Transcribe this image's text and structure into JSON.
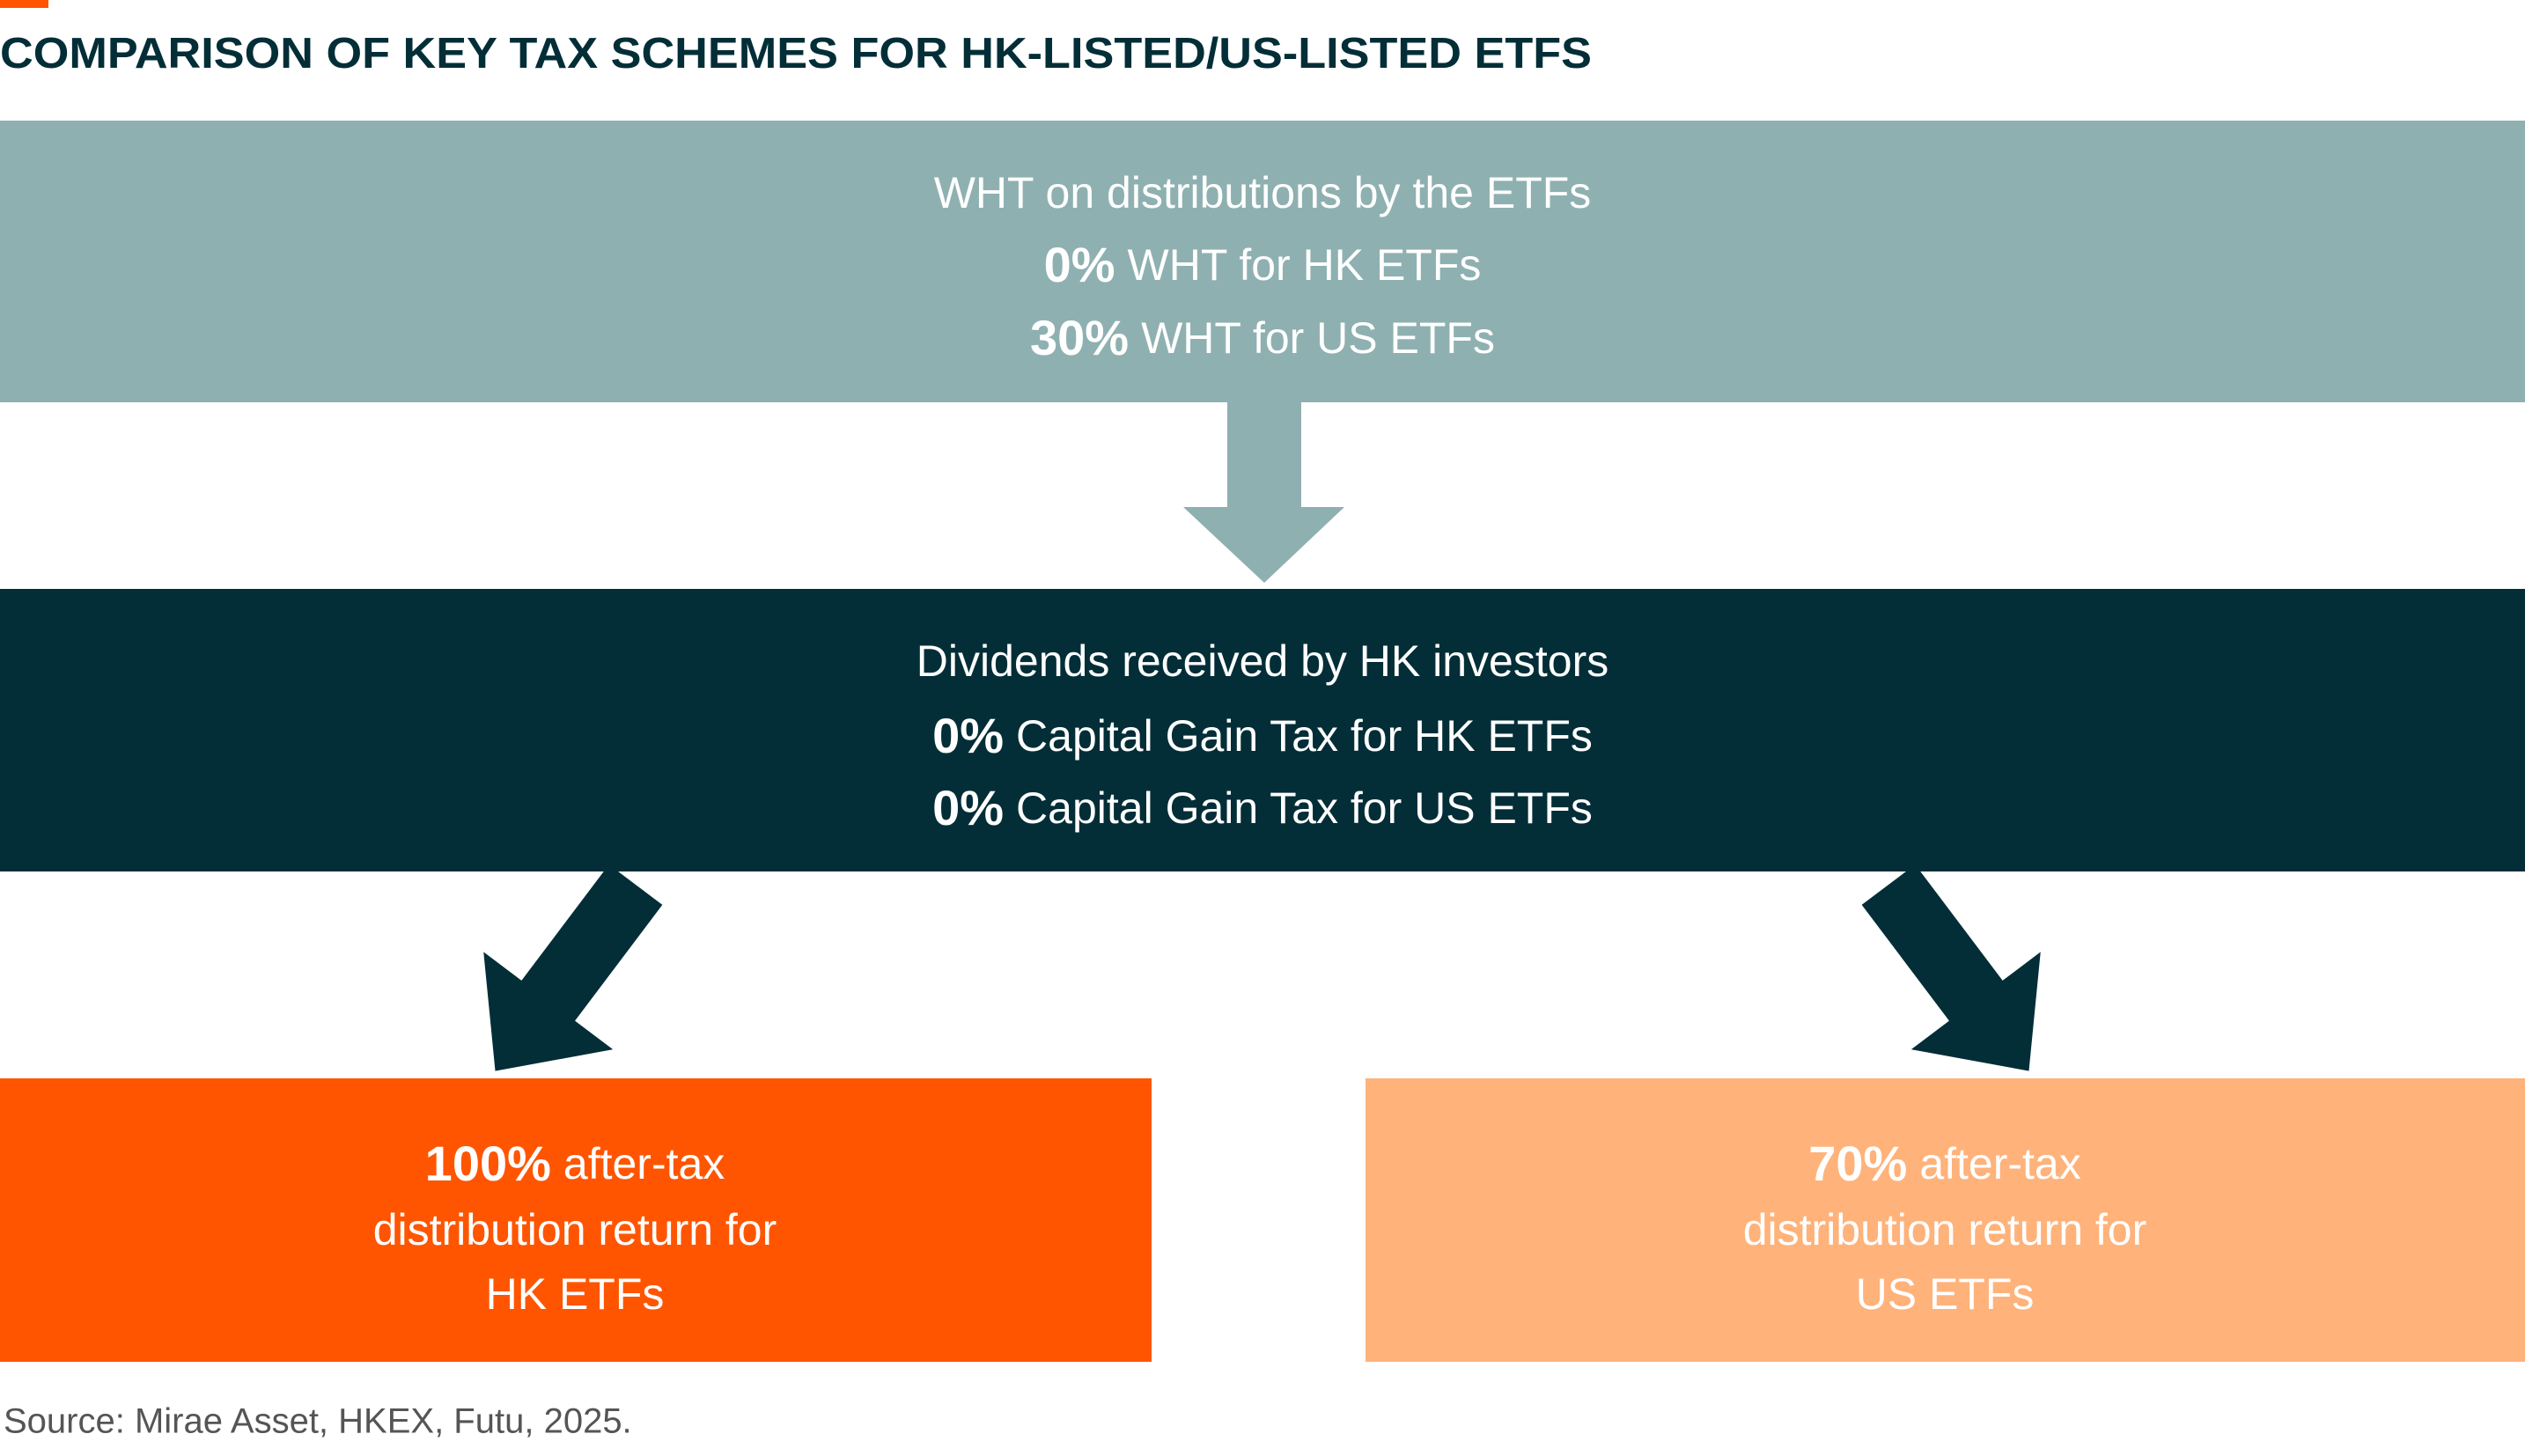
{
  "title": "COMPARISON OF KEY TAX SCHEMES FOR HK-LISTED/US-LISTED ETFS",
  "top_box": {
    "lines": [
      {
        "text": "WHT on distributions by the ETFs"
      },
      {
        "bold": "0%",
        "text": "WHT for HK ETFs"
      },
      {
        "bold": "30%",
        "text": "WHT for US ETFs"
      }
    ]
  },
  "middle_box": {
    "lines": [
      {
        "text": "Dividends received by HK investors"
      },
      {
        "bold": "0%",
        "text": "Capital Gain Tax for HK ETFs"
      },
      {
        "bold": "0%",
        "text": "Capital Gain Tax for US ETFs"
      }
    ]
  },
  "left_box": {
    "lines": [
      {
        "bold": "100%",
        "text": "after-tax"
      },
      {
        "text": "distribution return for"
      },
      {
        "text": "HK ETFs"
      }
    ]
  },
  "right_box": {
    "lines": [
      {
        "bold": "70%",
        "text": "after-tax"
      },
      {
        "text": "distribution return for"
      },
      {
        "text": "US ETFs"
      }
    ]
  },
  "source": "Source: Mirae Asset, HKEX, Futu, 2025."
}
